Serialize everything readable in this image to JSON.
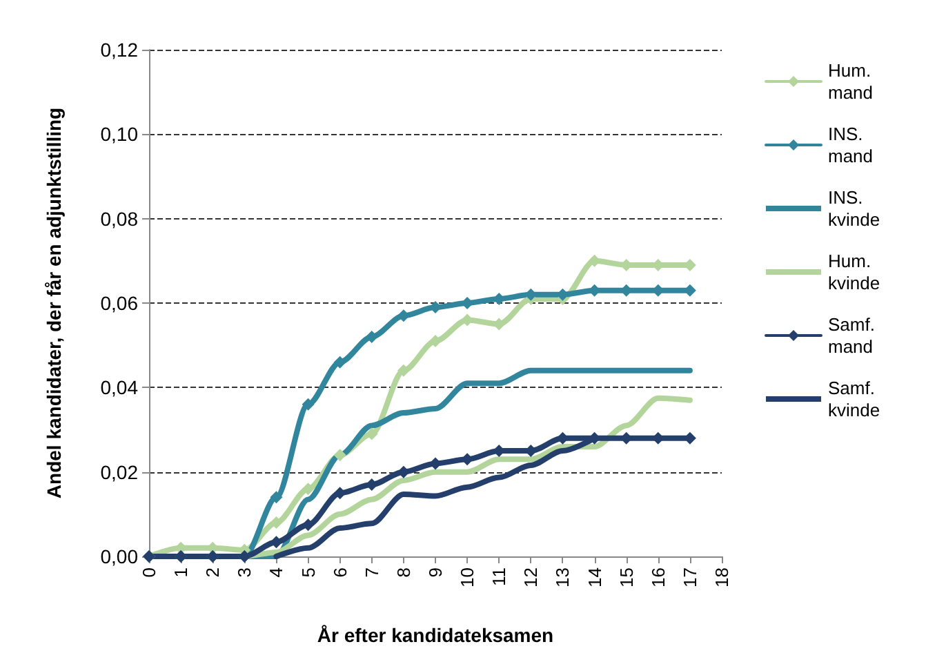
{
  "chart_data": {
    "type": "line",
    "xlabel": "År efter kandidateksamen",
    "ylabel": "Andel kandidater, der får en adjunktstilling",
    "x": [
      0,
      1,
      2,
      3,
      4,
      5,
      6,
      7,
      8,
      9,
      10,
      11,
      12,
      13,
      14,
      15,
      16,
      17
    ],
    "xlim": [
      0,
      18
    ],
    "xticks": [
      0,
      1,
      2,
      3,
      4,
      5,
      6,
      7,
      8,
      9,
      10,
      11,
      12,
      13,
      14,
      15,
      16,
      17,
      18
    ],
    "ylim": [
      0,
      0.12
    ],
    "yticks": [
      {
        "value": 0,
        "label": "0,00"
      },
      {
        "value": 0.02,
        "label": "0,02"
      },
      {
        "value": 0.04,
        "label": "0,04"
      },
      {
        "value": 0.06,
        "label": "0,06"
      },
      {
        "value": 0.08,
        "label": "0,08"
      },
      {
        "value": 0.1,
        "label": "0,10"
      },
      {
        "value": 0.12,
        "label": "0,12"
      }
    ],
    "grid": "y",
    "legend": "right",
    "series": [
      {
        "name": "Hum. mand",
        "color": "#b3d59b",
        "marker": "diamond",
        "values": [
          0,
          0.002,
          0.002,
          0.0015,
          0.008,
          0.016,
          0.024,
          0.029,
          0.044,
          0.051,
          0.056,
          0.055,
          0.061,
          0.061,
          0.07,
          0.069,
          0.069,
          0.069
        ]
      },
      {
        "name": "INS. mand",
        "color": "#31859c",
        "marker": "diamond",
        "values": [
          0,
          0,
          0,
          0,
          0.014,
          0.036,
          0.046,
          0.052,
          0.057,
          0.059,
          0.06,
          0.061,
          0.062,
          0.062,
          0.063,
          0.063,
          0.063,
          0.063
        ]
      },
      {
        "name": "INS. kvinde",
        "color": "#31859c",
        "marker": "none",
        "values": [
          0,
          0,
          0,
          0,
          0,
          0.0135,
          0.024,
          0.031,
          0.034,
          0.035,
          0.041,
          0.041,
          0.044,
          0.044,
          0.044,
          0.044,
          0.044,
          0.044
        ]
      },
      {
        "name": "Hum. kvinde",
        "color": "#b3d59b",
        "marker": "none",
        "values": [
          0,
          0,
          0,
          0,
          0.001,
          0.005,
          0.01,
          0.0135,
          0.018,
          0.02,
          0.02,
          0.023,
          0.023,
          0.026,
          0.026,
          0.031,
          0.0375,
          0.037
        ]
      },
      {
        "name": "Samf. mand",
        "color": "#243f6b",
        "marker": "diamond",
        "values": [
          0,
          0,
          0,
          0,
          0.0034,
          0.0075,
          0.015,
          0.017,
          0.02,
          0.022,
          0.023,
          0.025,
          0.025,
          0.028,
          0.028,
          0.028,
          0.028,
          0.028
        ]
      },
      {
        "name": "Samf. kvinde",
        "color": "#243f6b",
        "marker": "none",
        "values": [
          null,
          null,
          null,
          null,
          0,
          0.002,
          0.0067,
          0.0078,
          0.0147,
          0.0143,
          0.0164,
          0.0187,
          0.0216,
          0.025,
          0.028,
          null,
          null,
          null
        ]
      }
    ]
  }
}
